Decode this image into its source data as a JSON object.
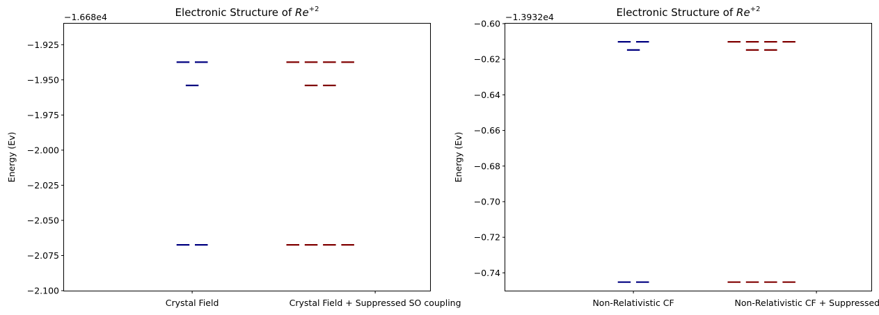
{
  "chart_data": [
    {
      "type": "energy-level",
      "title": "Electronic Structure of Re+2",
      "title_prefix": "Electronic Structure of ",
      "title_base": "Re",
      "title_sup": "+2",
      "ylabel": "Energy (Ev)",
      "xlabel": "",
      "offset_text": "−1.668e4",
      "ylim": [
        -2.1,
        -1.91
      ],
      "yticks": [
        -1.925,
        -1.95,
        -1.975,
        -2.0,
        -2.025,
        -2.05,
        -2.075,
        -2.1
      ],
      "ytick_labels": [
        "−1.925",
        "−1.950",
        "−1.975",
        "−2.000",
        "−2.025",
        "−2.050",
        "−2.075",
        "−2.100"
      ],
      "categories": [
        "Crystal Field",
        "Crystal Field + Suppressed SO coupling"
      ],
      "xlim": [
        -0.7,
        1.3
      ],
      "grid": false,
      "series": [
        {
          "color": "#000080",
          "levels": [
            {
              "x": -0.05,
              "y": -1.9374
            },
            {
              "x": 0.05,
              "y": -1.9374
            },
            {
              "x": 0.0,
              "y": -1.954
            },
            {
              "x": -0.05,
              "y": -2.0674
            },
            {
              "x": 0.05,
              "y": -2.0674
            }
          ]
        },
        {
          "color": "#800000",
          "levels": [
            {
              "x": 0.55,
              "y": -1.9374
            },
            {
              "x": 0.65,
              "y": -1.9374
            },
            {
              "x": 0.75,
              "y": -1.9374
            },
            {
              "x": 0.85,
              "y": -1.9374
            },
            {
              "x": 0.65,
              "y": -1.954
            },
            {
              "x": 0.75,
              "y": -1.954
            },
            {
              "x": 0.55,
              "y": -2.0674
            },
            {
              "x": 0.65,
              "y": -2.0674
            },
            {
              "x": 0.75,
              "y": -2.0674
            },
            {
              "x": 0.85,
              "y": -2.0674
            }
          ]
        }
      ]
    },
    {
      "type": "energy-level",
      "title": "Electronic Structure of Re+2",
      "title_prefix": "Electronic Structure of ",
      "title_base": "Re",
      "title_sup": "+2",
      "ylabel": "Energy (Ev)",
      "xlabel": "",
      "offset_text": "−1.3932e4",
      "ylim": [
        -0.75,
        -0.6
      ],
      "yticks": [
        -0.6,
        -0.62,
        -0.64,
        -0.66,
        -0.68,
        -0.7,
        -0.72,
        -0.74
      ],
      "ytick_labels": [
        "−0.60",
        "−0.62",
        "−0.64",
        "−0.66",
        "−0.68",
        "−0.70",
        "−0.72",
        "−0.74"
      ],
      "categories": [
        "Non-Relativistic CF",
        "Non-Relativistic CF + Suppressed S-O"
      ],
      "xlim": [
        -0.7,
        1.3
      ],
      "grid": false,
      "series": [
        {
          "color": "#000080",
          "levels": [
            {
              "x": -0.05,
              "y": -0.6102
            },
            {
              "x": 0.05,
              "y": -0.6102
            },
            {
              "x": 0.0,
              "y": -0.6148
            },
            {
              "x": -0.05,
              "y": -0.7452
            },
            {
              "x": 0.05,
              "y": -0.7452
            }
          ]
        },
        {
          "color": "#800000",
          "levels": [
            {
              "x": 0.55,
              "y": -0.6102
            },
            {
              "x": 0.65,
              "y": -0.6102
            },
            {
              "x": 0.75,
              "y": -0.6102
            },
            {
              "x": 0.85,
              "y": -0.6102
            },
            {
              "x": 0.65,
              "y": -0.6148
            },
            {
              "x": 0.75,
              "y": -0.6148
            },
            {
              "x": 0.55,
              "y": -0.7452
            },
            {
              "x": 0.65,
              "y": -0.7452
            },
            {
              "x": 0.75,
              "y": -0.7452
            },
            {
              "x": 0.85,
              "y": -0.7452
            }
          ]
        }
      ]
    }
  ]
}
